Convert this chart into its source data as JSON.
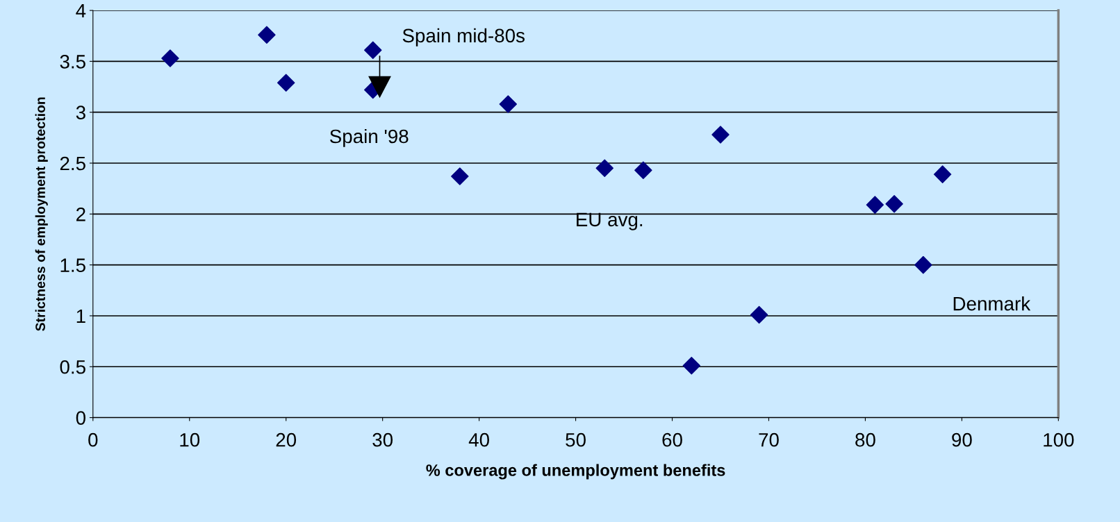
{
  "chart_data": {
    "type": "scatter",
    "xlabel": "% coverage of unemployment benefits",
    "ylabel": "Strictness of employment protection",
    "x": [
      8,
      18,
      20,
      29,
      29,
      38,
      43,
      53,
      57,
      62,
      65,
      69,
      81,
      83,
      86,
      88
    ],
    "series": [
      {
        "color": "#000080",
        "values": [
          3.53,
          3.76,
          3.29,
          3.61,
          3.22,
          2.37,
          3.08,
          2.45,
          2.43,
          0.51,
          2.78,
          1.01,
          2.09,
          2.1,
          1.5,
          2.39
        ]
      }
    ],
    "marker": "diamond",
    "grid": "y",
    "legend": false,
    "xlim": [
      0,
      100
    ],
    "xticks": [
      0,
      10,
      20,
      30,
      40,
      50,
      60,
      70,
      80,
      90,
      100
    ],
    "ylim": [
      0,
      4
    ],
    "yticks": [
      0,
      0.5,
      1,
      1.5,
      2,
      2.5,
      3,
      3.5,
      4
    ],
    "annotations": [
      {
        "text": "Spain mid-80s",
        "x": 29,
        "y": 3.61
      },
      {
        "text": "Spain '98",
        "x": 29,
        "y": 3.22
      },
      {
        "text": "EU avg.",
        "x": 53,
        "y": 2.45
      },
      {
        "text": "Denmark",
        "x": 86,
        "y": 1.5
      }
    ]
  }
}
